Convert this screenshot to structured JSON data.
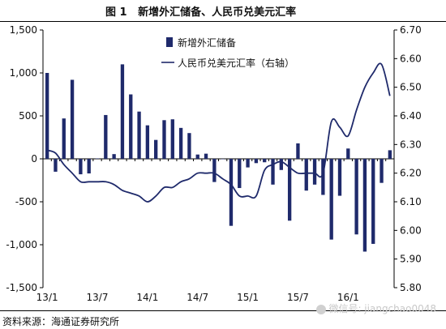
{
  "figure": {
    "number_label": "图 1",
    "title_text": "新增外汇储备、人民币兑美元汇率"
  },
  "source_text": "资料来源：海通证券研究所",
  "watermark_text": "微信号: jiangchao0048",
  "colors": {
    "bar": "#1f2a6b",
    "line": "#1f2a6b",
    "axis": "#000000"
  },
  "chart_data": {
    "type": "bar+line",
    "x_tick_labels": [
      "13/1",
      "13/7",
      "14/1",
      "14/7",
      "15/1",
      "15/7",
      "16/1"
    ],
    "y_left": {
      "min": -1500,
      "max": 1500,
      "ticks": [
        1500,
        1000,
        500,
        0,
        -500,
        -1000,
        -1500
      ],
      "tick_labels": [
        "1,500",
        "1,000",
        "500",
        "0",
        "-500",
        "-1,000",
        "-1,500"
      ]
    },
    "y_right": {
      "min": 5.8,
      "max": 6.7,
      "ticks": [
        6.7,
        6.6,
        6.5,
        6.4,
        6.3,
        6.2,
        6.1,
        6.0,
        5.9,
        5.8
      ],
      "tick_labels": [
        "6.70",
        "6.60",
        "6.50",
        "6.40",
        "6.30",
        "6.20",
        "6.10",
        "6.00",
        "5.90",
        "5.80"
      ]
    },
    "series": [
      {
        "name": "新增外汇储备",
        "type": "bar",
        "axis": "left",
        "values": [
          1000,
          -150,
          470,
          920,
          -180,
          -170,
          5,
          510,
          55,
          1100,
          750,
          550,
          390,
          220,
          450,
          460,
          360,
          300,
          50,
          60,
          -270,
          0,
          -780,
          -340,
          -100,
          -50,
          -40,
          -300,
          -130,
          -720,
          180,
          -370,
          -300,
          -420,
          -940,
          -430,
          120,
          -880,
          -1080,
          -990,
          -280,
          100
        ]
      },
      {
        "name": "人民币兑美元汇率（右轴）",
        "type": "line",
        "axis": "right",
        "values": [
          6.28,
          6.27,
          6.23,
          6.2,
          6.17,
          6.17,
          6.17,
          6.17,
          6.16,
          6.14,
          6.13,
          6.12,
          6.1,
          6.12,
          6.15,
          6.15,
          6.17,
          6.18,
          6.2,
          6.2,
          6.2,
          6.18,
          6.16,
          6.12,
          6.12,
          6.12,
          6.21,
          6.23,
          6.24,
          6.22,
          6.2,
          6.2,
          6.2,
          6.2,
          6.38,
          6.36,
          6.33,
          6.42,
          6.5,
          6.55,
          6.58,
          6.47
        ]
      }
    ]
  }
}
